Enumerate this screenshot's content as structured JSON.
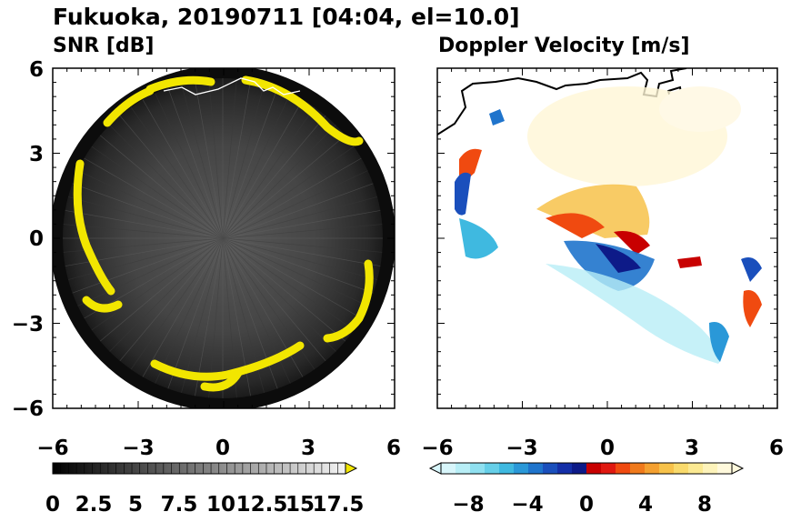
{
  "figure": {
    "title": "Fukuoka, 20190711 [04:04, el=10.0]"
  },
  "colors": {
    "snr_echo_edge": "#f2e600",
    "frame": "#000000",
    "coast": "#000000"
  },
  "chart_data": [
    {
      "type": "heatmap",
      "name": "snr-panel",
      "title": "SNR [dB]",
      "xlim": [
        -6,
        6
      ],
      "ylim": [
        -6,
        6
      ],
      "xticks": [
        -6,
        -3,
        0,
        3,
        6
      ],
      "yticks": [
        6,
        3,
        0,
        -3,
        -6
      ],
      "xtick_labels": [
        "−6",
        "−3",
        "0",
        "3",
        "6"
      ],
      "ytick_labels": [
        "6",
        "3",
        "0",
        "−3",
        "−6"
      ],
      "scan_radius": 6,
      "colorbar": {
        "min": 0,
        "max": 18.5,
        "step": 0.5,
        "extend": "max",
        "labels": [
          "0",
          "2.5",
          "5",
          "7.5",
          "10",
          "12.5",
          "15",
          "17.5"
        ]
      }
    },
    {
      "type": "heatmap",
      "name": "doppler-panel",
      "title": "Doppler Velocity [m/s]",
      "xlim": [
        -6,
        6
      ],
      "ylim": [
        -6,
        6
      ],
      "xticks": [
        -6,
        -3,
        0,
        3,
        6
      ],
      "yticks": [
        6,
        3,
        0,
        -3,
        -6
      ],
      "xtick_labels": [
        "−6",
        "−3",
        "0",
        "3",
        "6"
      ],
      "colorbar": {
        "min": -10,
        "max": 10,
        "extend": "both",
        "ticks": [
          -8,
          -4,
          0,
          4,
          8
        ],
        "labels": [
          "−8",
          "−4",
          "0",
          "4",
          "8"
        ],
        "colors": [
          "#d8f6fb",
          "#b8eef6",
          "#8fe0f0",
          "#66cfe8",
          "#3fb9e0",
          "#2a98d8",
          "#1f74cc",
          "#1a4fbc",
          "#142fa8",
          "#0d1a88",
          "#c80000",
          "#e01810",
          "#f04a10",
          "#f07a1c",
          "#f4a030",
          "#f7c24a",
          "#f9da6c",
          "#fbe992",
          "#fdf3ba",
          "#fff9dc"
        ]
      }
    }
  ]
}
